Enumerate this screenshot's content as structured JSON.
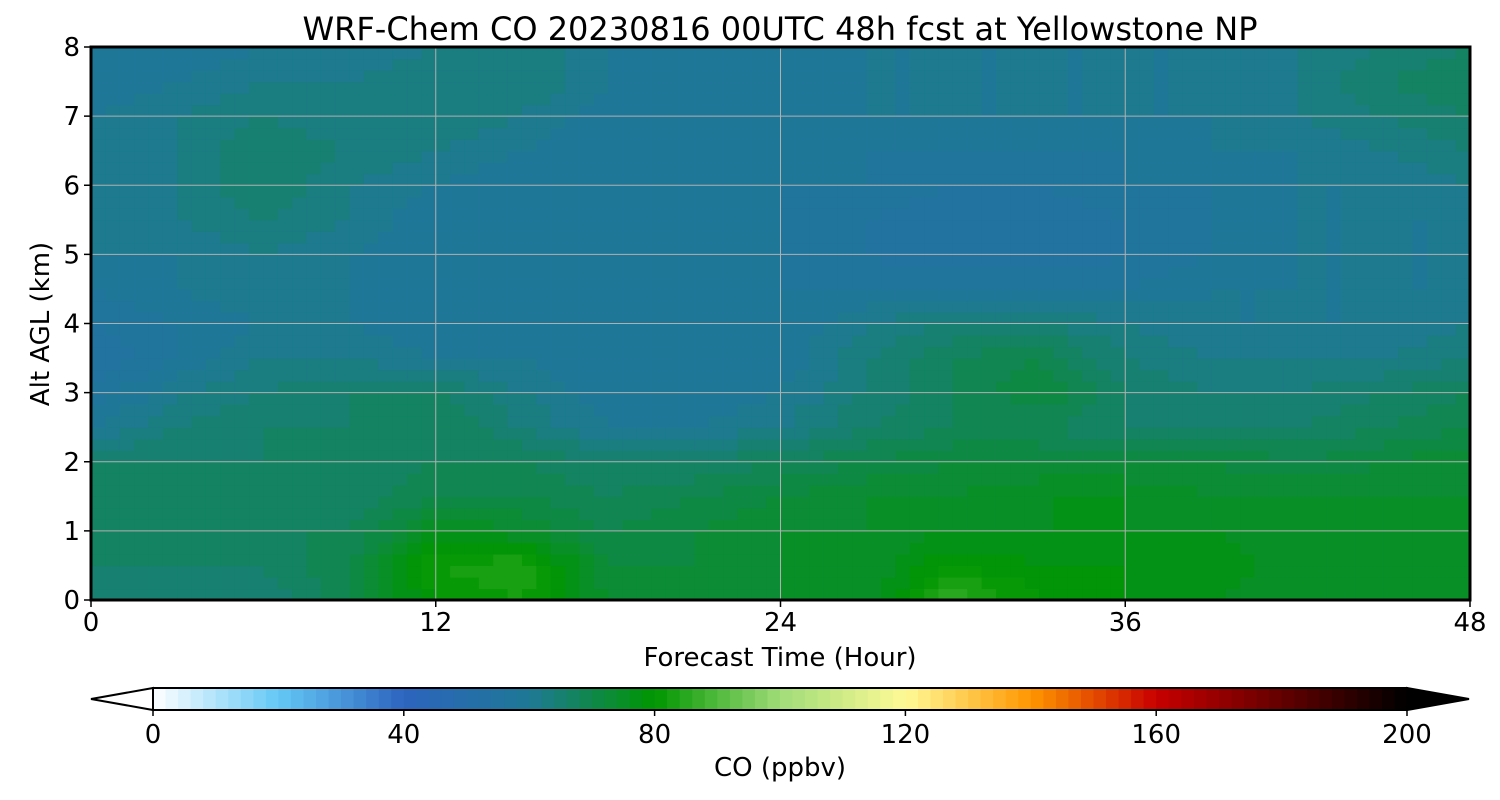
{
  "chart_data": {
    "type": "heatmap",
    "title": "WRF-Chem CO  20230816 00UTC 48h fcst at Yellowstone NP",
    "xlabel": "Forecast Time (Hour)",
    "ylabel": "Alt AGL (km)",
    "xlim": [
      0,
      48
    ],
    "ylim": [
      0,
      8
    ],
    "x_ticks": [
      0,
      12,
      24,
      36,
      48
    ],
    "y_ticks": [
      0,
      1,
      2,
      3,
      4,
      5,
      6,
      7,
      8
    ],
    "grid": true,
    "colorbar": {
      "label": "CO  (ppbv)",
      "range": [
        0,
        200
      ],
      "ticks": [
        0,
        40,
        80,
        120,
        160,
        200
      ],
      "extend": "both",
      "orientation": "horizontal",
      "colors": [
        "#ffffff",
        "#64c8f5",
        "#2d64be",
        "#1e7896",
        "#009600",
        "#a0dc78",
        "#fffa96",
        "#ff9600",
        "#c80000",
        "#640000",
        "#000000"
      ]
    },
    "x_hours": [
      0,
      3,
      6,
      9,
      12,
      15,
      18,
      21,
      24,
      27,
      30,
      33,
      36,
      39,
      42,
      45,
      48
    ],
    "z_km": [
      0,
      0.5,
      1,
      1.5,
      2,
      2.5,
      3,
      3.5,
      4,
      4.5,
      5,
      5.5,
      6,
      6.5,
      7,
      7.5,
      8
    ],
    "values_ppbv": [
      [
        64,
        66,
        64,
        70,
        80,
        82,
        74,
        72,
        74,
        74,
        86,
        80,
        78,
        76,
        74,
        74,
        74
      ],
      [
        66,
        66,
        66,
        70,
        82,
        84,
        72,
        72,
        74,
        74,
        80,
        78,
        78,
        78,
        74,
        74,
        74
      ],
      [
        66,
        66,
        68,
        68,
        76,
        74,
        70,
        72,
        74,
        74,
        76,
        76,
        76,
        76,
        74,
        74,
        74
      ],
      [
        66,
        66,
        68,
        66,
        70,
        70,
        68,
        70,
        72,
        74,
        74,
        76,
        76,
        74,
        74,
        74,
        74
      ],
      [
        66,
        66,
        66,
        66,
        68,
        68,
        66,
        66,
        68,
        70,
        72,
        72,
        72,
        72,
        70,
        72,
        74
      ],
      [
        60,
        64,
        66,
        66,
        68,
        64,
        60,
        60,
        62,
        66,
        68,
        68,
        66,
        66,
        66,
        68,
        70
      ],
      [
        56,
        62,
        64,
        66,
        66,
        62,
        58,
        58,
        60,
        64,
        68,
        72,
        66,
        64,
        64,
        66,
        68
      ],
      [
        54,
        58,
        62,
        62,
        60,
        60,
        58,
        58,
        58,
        64,
        68,
        70,
        64,
        62,
        62,
        62,
        64
      ],
      [
        56,
        58,
        60,
        60,
        58,
        60,
        58,
        58,
        58,
        62,
        64,
        64,
        62,
        60,
        60,
        60,
        62
      ],
      [
        58,
        60,
        62,
        60,
        58,
        60,
        58,
        58,
        58,
        58,
        58,
        58,
        58,
        60,
        60,
        60,
        60
      ],
      [
        60,
        60,
        62,
        60,
        58,
        58,
        58,
        58,
        58,
        56,
        54,
        54,
        56,
        58,
        60,
        60,
        60
      ],
      [
        60,
        62,
        64,
        62,
        58,
        58,
        58,
        58,
        58,
        56,
        54,
        54,
        56,
        58,
        60,
        60,
        60
      ],
      [
        60,
        62,
        66,
        62,
        60,
        58,
        58,
        58,
        58,
        58,
        56,
        56,
        58,
        58,
        60,
        60,
        62
      ],
      [
        60,
        62,
        66,
        64,
        62,
        60,
        58,
        58,
        58,
        58,
        58,
        58,
        58,
        60,
        60,
        62,
        64
      ],
      [
        60,
        62,
        64,
        62,
        64,
        62,
        58,
        58,
        58,
        60,
        60,
        60,
        60,
        60,
        62,
        64,
        66
      ],
      [
        58,
        60,
        62,
        62,
        64,
        64,
        60,
        58,
        58,
        60,
        60,
        60,
        60,
        60,
        62,
        66,
        68
      ],
      [
        58,
        58,
        60,
        60,
        62,
        64,
        60,
        58,
        58,
        60,
        60,
        60,
        60,
        60,
        62,
        64,
        66
      ]
    ]
  }
}
